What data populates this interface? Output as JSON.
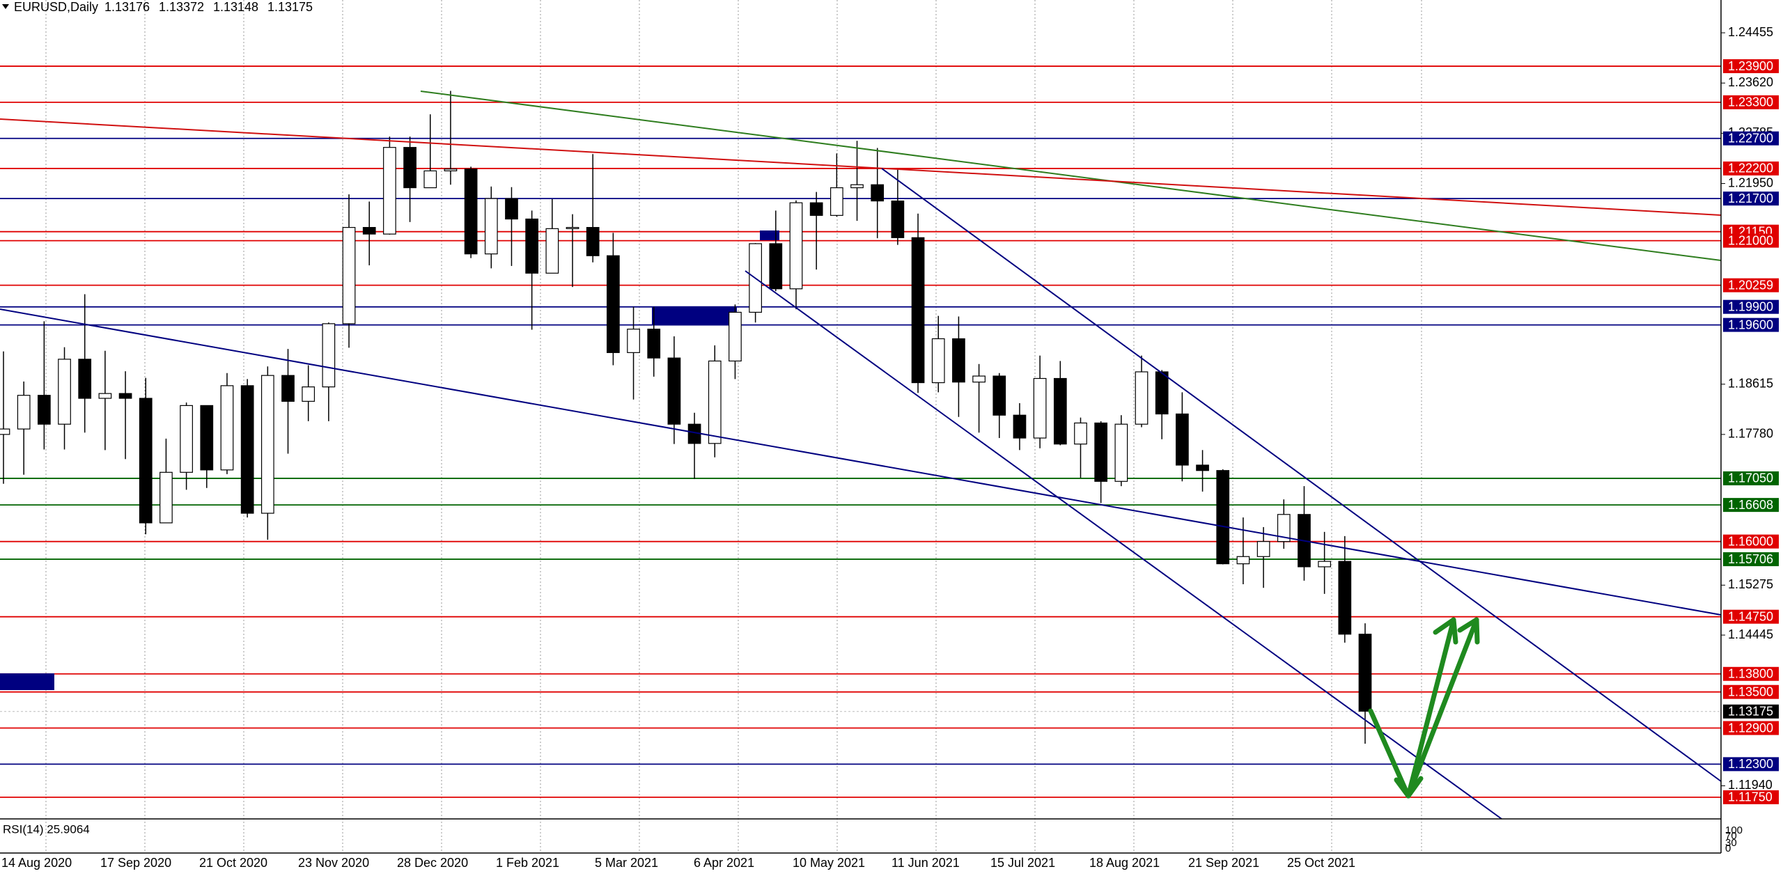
{
  "header": {
    "symbol": "EURUSD,Daily",
    "ohlc": [
      1.13176,
      1.13372,
      1.13148,
      1.13175
    ]
  },
  "ylim": [
    1.1139,
    1.25
  ],
  "price_ticks": [
    {
      "value": 1.24455,
      "label": "1.24455"
    },
    {
      "value": 1.2362,
      "label": "1.23620"
    },
    {
      "value": 1.22785,
      "label": "1.22785"
    },
    {
      "value": 1.2195,
      "label": "1.21950"
    },
    {
      "value": 1.18615,
      "label": "1.18615"
    },
    {
      "value": 1.1778,
      "label": "1.17780"
    },
    {
      "value": 1.15275,
      "label": "1.15275"
    },
    {
      "value": 1.14445,
      "label": "1.14445"
    },
    {
      "value": 1.1194,
      "label": "1.11940"
    }
  ],
  "levels": [
    {
      "price": 1.239,
      "label": "1.23900",
      "color": "#e00000"
    },
    {
      "price": 1.233,
      "label": "1.23300",
      "color": "#e00000"
    },
    {
      "price": 1.227,
      "label": "1.22700",
      "color": "#000080"
    },
    {
      "price": 1.222,
      "label": "1.22200",
      "color": "#e00000"
    },
    {
      "price": 1.217,
      "label": "1.21700",
      "color": "#000080"
    },
    {
      "price": 1.2115,
      "label": "1.21150",
      "color": "#e00000"
    },
    {
      "price": 1.21,
      "label": "1.21000",
      "color": "#e00000"
    },
    {
      "price": 1.20259,
      "label": "1.20259",
      "color": "#e00000"
    },
    {
      "price": 1.199,
      "label": "1.19900",
      "color": "#000080"
    },
    {
      "price": 1.196,
      "label": "1.19600",
      "color": "#000080"
    },
    {
      "price": 1.1705,
      "label": "1.17050",
      "color": "#006400"
    },
    {
      "price": 1.16608,
      "label": "1.16608",
      "color": "#006400"
    },
    {
      "price": 1.16,
      "label": "1.16000",
      "color": "#e00000"
    },
    {
      "price": 1.15706,
      "label": "1.15706",
      "color": "#006400"
    },
    {
      "price": 1.1475,
      "label": "1.14750",
      "color": "#e00000"
    },
    {
      "price": 1.138,
      "label": "1.13800",
      "color": "#e00000"
    },
    {
      "price": 1.135,
      "label": "1.13500",
      "color": "#e00000"
    },
    {
      "price": 1.13175,
      "label": "1.13175",
      "color": "#000000"
    },
    {
      "price": 1.129,
      "label": "1.12900",
      "color": "#e00000"
    },
    {
      "price": 1.123,
      "label": "1.12300",
      "color": "#000080"
    },
    {
      "price": 1.1175,
      "label": "1.11750",
      "color": "#e00000"
    }
  ],
  "dates": [
    "14 Aug 2020",
    "17 Sep 2020",
    "21 Oct 2020",
    "23 Nov 2020",
    "28 Dec 2020",
    "1 Feb 2021",
    "5 Mar 2021",
    "6 Apr 2021",
    "10 May 2021",
    "11 Jun 2021",
    "15 Jul 2021",
    "18 Aug 2021",
    "21 Sep 2021",
    "25 Oct 2021"
  ],
  "rsi": {
    "label": "RSI(14) 25.9064",
    "scale": [
      100,
      70,
      30,
      0
    ]
  },
  "candles": [
    [
      1.1778,
      1.1916,
      1.1696,
      1.1787
    ],
    [
      1.1787,
      1.1866,
      1.1711,
      1.1843
    ],
    [
      1.1843,
      1.1966,
      1.1753,
      1.1795
    ],
    [
      1.1795,
      1.1923,
      1.1753,
      1.1903
    ],
    [
      1.1903,
      1.2011,
      1.1781,
      1.1838
    ],
    [
      1.1838,
      1.1917,
      1.1752,
      1.1846
    ],
    [
      1.1846,
      1.1883,
      1.1737,
      1.1838
    ],
    [
      1.1838,
      1.1872,
      1.1612,
      1.1631
    ],
    [
      1.1631,
      1.1771,
      1.1631,
      1.1715
    ],
    [
      1.1715,
      1.1831,
      1.1686,
      1.1826
    ],
    [
      1.1826,
      1.1826,
      1.1689,
      1.1719
    ],
    [
      1.1719,
      1.188,
      1.1712,
      1.1859
    ],
    [
      1.1859,
      1.187,
      1.164,
      1.1647
    ],
    [
      1.1647,
      1.1891,
      1.1603,
      1.1876
    ],
    [
      1.1876,
      1.192,
      1.1746,
      1.1833
    ],
    [
      1.1833,
      1.1893,
      1.18,
      1.1857
    ],
    [
      1.1857,
      1.1964,
      1.18,
      1.1962
    ],
    [
      1.1962,
      1.2177,
      1.1922,
      1.2122
    ],
    [
      1.2122,
      1.2165,
      1.2059,
      1.2111
    ],
    [
      1.2111,
      1.2273,
      1.211,
      1.2255
    ],
    [
      1.2255,
      1.2273,
      1.2131,
      1.2188
    ],
    [
      1.2188,
      1.231,
      1.2188,
      1.2216
    ],
    [
      1.2216,
      1.2349,
      1.2193,
      1.2219
    ],
    [
      1.2219,
      1.2223,
      1.2071,
      1.2078
    ],
    [
      1.2078,
      1.219,
      1.2054,
      1.217
    ],
    [
      1.217,
      1.2189,
      1.2058,
      1.2136
    ],
    [
      1.2136,
      1.215,
      1.1952,
      1.2046
    ],
    [
      1.2046,
      1.2169,
      1.2046,
      1.212
    ],
    [
      1.212,
      1.2144,
      1.2023,
      1.2122
    ],
    [
      1.2122,
      1.2244,
      1.2064,
      1.2075
    ],
    [
      1.2075,
      1.2113,
      1.1893,
      1.1914
    ],
    [
      1.1914,
      1.199,
      1.1836,
      1.1953
    ],
    [
      1.1953,
      1.199,
      1.1874,
      1.1905
    ],
    [
      1.1905,
      1.1941,
      1.1762,
      1.1795
    ],
    [
      1.1795,
      1.1814,
      1.1704,
      1.1763
    ],
    [
      1.1763,
      1.1926,
      1.174,
      1.19
    ],
    [
      1.19,
      1.1994,
      1.187,
      1.1981
    ],
    [
      1.1981,
      1.2096,
      1.1964,
      1.2095
    ],
    [
      1.2095,
      1.215,
      1.2016,
      1.202
    ],
    [
      1.202,
      1.2167,
      1.1986,
      1.2163
    ],
    [
      1.2163,
      1.2181,
      1.2052,
      1.2142
    ],
    [
      1.2142,
      1.2245,
      1.214,
      1.2188
    ],
    [
      1.2188,
      1.2266,
      1.2133,
      1.2193
    ],
    [
      1.2193,
      1.2254,
      1.2104,
      1.2166
    ],
    [
      1.2166,
      1.2218,
      1.2093,
      1.2105
    ],
    [
      1.2105,
      1.2145,
      1.1847,
      1.1864
    ],
    [
      1.1864,
      1.1975,
      1.1848,
      1.1937
    ],
    [
      1.1937,
      1.1974,
      1.1807,
      1.1865
    ],
    [
      1.1865,
      1.1895,
      1.1781,
      1.1875
    ],
    [
      1.1875,
      1.188,
      1.1772,
      1.181
    ],
    [
      1.181,
      1.183,
      1.1752,
      1.1772
    ],
    [
      1.1772,
      1.1909,
      1.1755,
      1.1871
    ],
    [
      1.1871,
      1.19,
      1.176,
      1.1762
    ],
    [
      1.1762,
      1.1806,
      1.1706,
      1.1797
    ],
    [
      1.1797,
      1.18,
      1.1664,
      1.17
    ],
    [
      1.17,
      1.181,
      1.1692,
      1.1795
    ],
    [
      1.1795,
      1.1909,
      1.179,
      1.1882
    ],
    [
      1.1882,
      1.1885,
      1.177,
      1.1812
    ],
    [
      1.1812,
      1.1848,
      1.17,
      1.1727
    ],
    [
      1.1727,
      1.1752,
      1.1683,
      1.1718
    ],
    [
      1.1718,
      1.172,
      1.1562,
      1.1563
    ],
    [
      1.1563,
      1.164,
      1.1529,
      1.1575
    ],
    [
      1.1575,
      1.1624,
      1.1523,
      1.16
    ],
    [
      1.16,
      1.167,
      1.1588,
      1.1645
    ],
    [
      1.1645,
      1.1692,
      1.1535,
      1.1558
    ],
    [
      1.1558,
      1.1616,
      1.1513,
      1.1567
    ],
    [
      1.1567,
      1.1609,
      1.1432,
      1.1446
    ],
    [
      1.1446,
      1.1464,
      1.1264,
      1.1318
    ]
  ]
}
